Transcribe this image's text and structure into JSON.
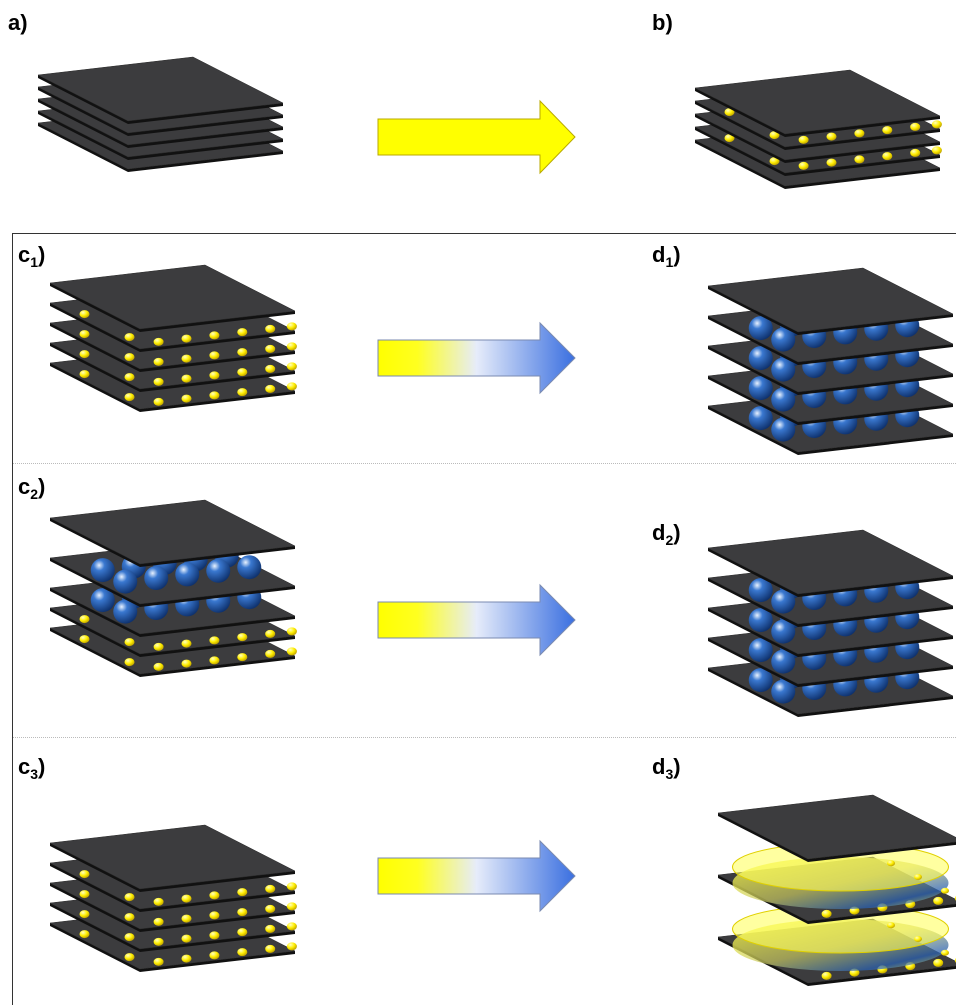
{
  "panels": [
    {
      "label": "a)"
    },
    {
      "label": "b)"
    },
    {
      "label": "c",
      "sub": "1",
      "suffix": ")"
    },
    {
      "label": "d",
      "sub": "1",
      "suffix": ")"
    },
    {
      "label": "c",
      "sub": "2",
      "suffix": ")"
    },
    {
      "label": "d",
      "sub": "2",
      "suffix": ")"
    },
    {
      "label": "c",
      "sub": "3",
      "suffix": ")"
    },
    {
      "label": "d",
      "sub": "3",
      "suffix": ")"
    }
  ]
}
